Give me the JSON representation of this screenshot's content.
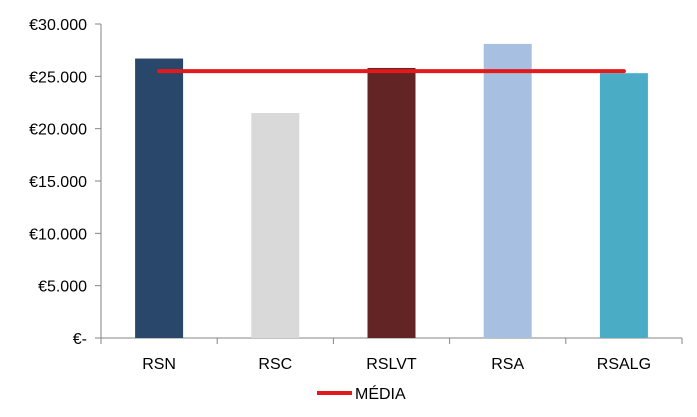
{
  "chart_data": {
    "type": "bar",
    "categories": [
      "RSN",
      "RSC",
      "RSLVT",
      "RSA",
      "RSALG"
    ],
    "values": [
      26700,
      21500,
      25800,
      28100,
      25300
    ],
    "bar_colors": [
      "#29466b",
      "#d9d9d9",
      "#632426",
      "#a7bfe0",
      "#4bacc6"
    ],
    "ylim": [
      0,
      30000
    ],
    "y_ticks": [
      0,
      5000,
      10000,
      15000,
      20000,
      25000,
      30000
    ],
    "y_tick_labels": [
      "€-",
      "€5.000",
      "€10.000",
      "€15.000",
      "€20.000",
      "€25.000",
      "€30.000"
    ],
    "reference_line": {
      "name": "MÉDIA",
      "value": 25500,
      "color": "#e31a1c"
    },
    "grid": false,
    "legend_position": "bottom-center",
    "title": "",
    "xlabel": "",
    "ylabel": ""
  }
}
